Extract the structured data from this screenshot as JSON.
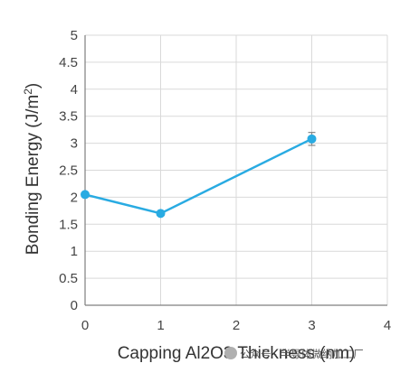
{
  "chart_data": {
    "type": "line",
    "title": "",
    "xlabel": "Capping Al2O3 Thickness (nm)",
    "ylabel_main": "Bonding Energy (J/m",
    "ylabel_sup": "2",
    "ylabel_close": ")",
    "xlim": [
      0,
      4
    ],
    "ylim": [
      0,
      5
    ],
    "xticks": [
      "0",
      "1",
      "2",
      "3",
      "4"
    ],
    "yticks": [
      "0",
      "0.5",
      "1",
      "1.5",
      "2",
      "2.5",
      "3",
      "3.5",
      "4",
      "4.5",
      "5"
    ],
    "grid": true,
    "series": [
      {
        "x": [
          0,
          1,
          3
        ],
        "y": [
          2.05,
          1.7,
          3.08
        ],
        "error": [
          0,
          0,
          0.12
        ],
        "color": "#29abe2"
      }
    ]
  },
  "watermark": {
    "text": "公众号 · 半导体微纳加工厂"
  }
}
